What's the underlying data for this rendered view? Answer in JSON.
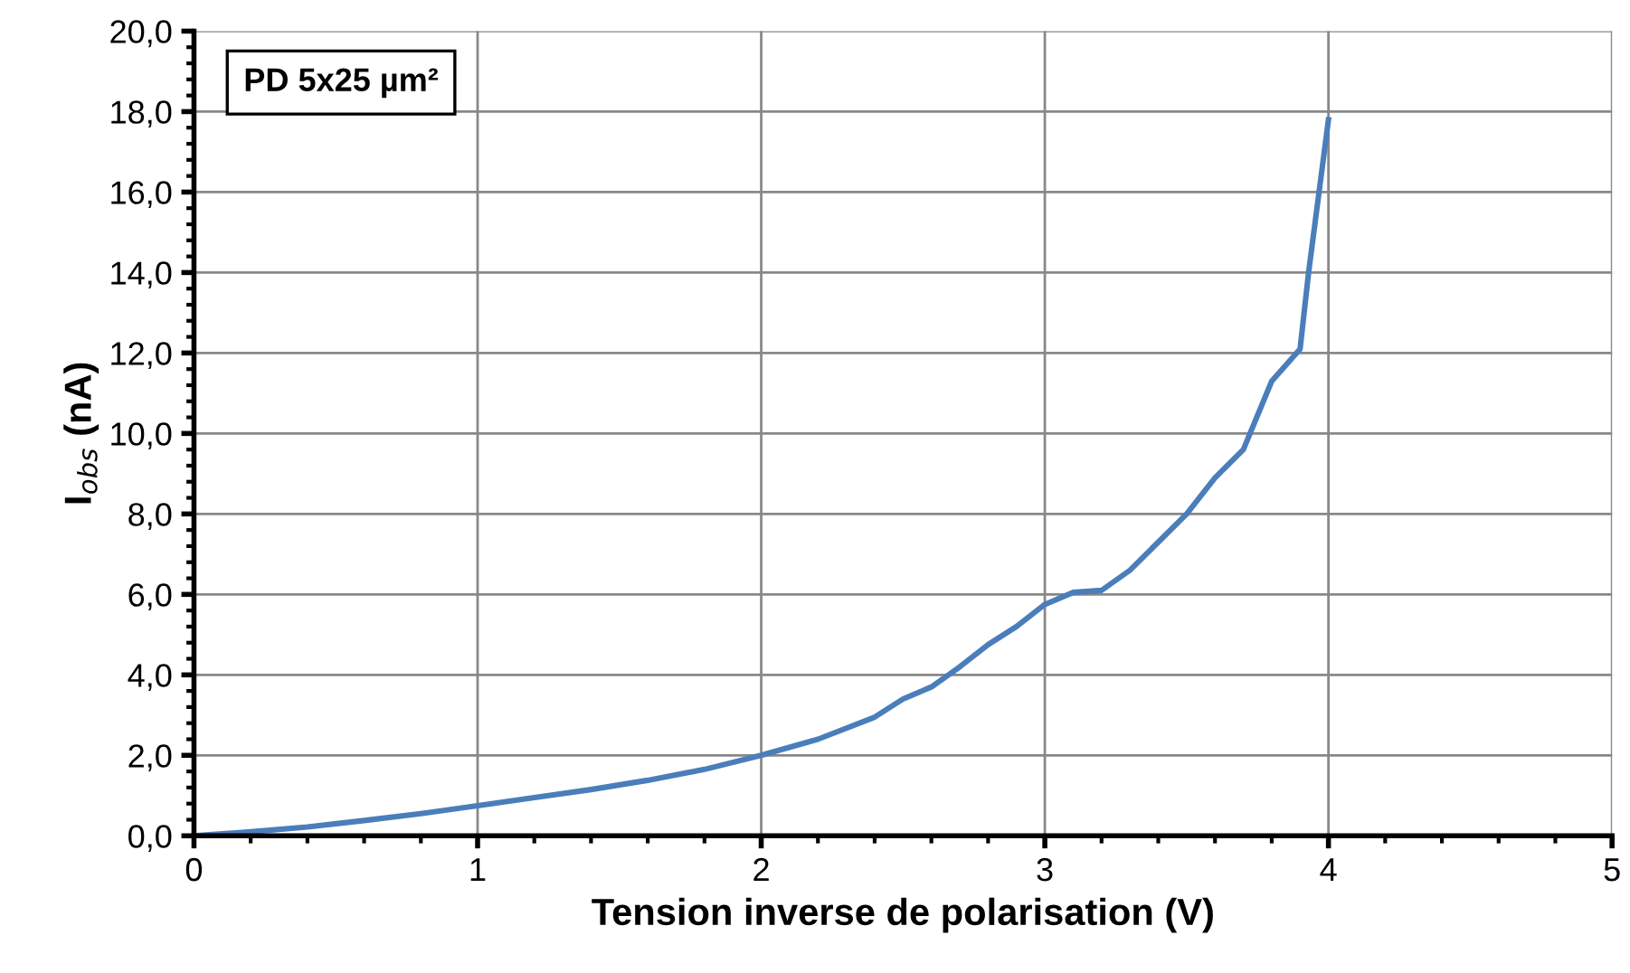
{
  "chart_data": {
    "type": "line",
    "xlabel": "Tension inverse de polarisation (V)",
    "ylabel": "I$_{obs}$ (nA)",
    "annotations": [
      "PD 5x25 µm²"
    ],
    "x": [
      0,
      0.2,
      0.4,
      0.6,
      0.8,
      1.0,
      1.2,
      1.4,
      1.6,
      1.8,
      2.0,
      2.2,
      2.4,
      2.5,
      2.6,
      2.7,
      2.8,
      2.9,
      3.0,
      3.1,
      3.2,
      3.3,
      3.4,
      3.5,
      3.6,
      3.7,
      3.8,
      3.9,
      3.93,
      4.0
    ],
    "series": [
      {
        "color": "#4a7ebb",
        "values": [
          0,
          0.1,
          0.22,
          0.38,
          0.55,
          0.75,
          0.95,
          1.15,
          1.38,
          1.65,
          2.0,
          2.4,
          2.95,
          3.4,
          3.7,
          4.2,
          4.75,
          5.2,
          5.75,
          6.05,
          6.1,
          6.6,
          7.3,
          8.0,
          8.9,
          9.6,
          11.3,
          12.1,
          14.0,
          17.8
        ]
      }
    ],
    "xlim": [
      0,
      5
    ],
    "xticks": [
      0,
      1,
      2,
      3,
      4,
      5
    ],
    "ylim": [
      0,
      20
    ],
    "yticks": [
      {
        "value": 0,
        "label": "0,0"
      },
      {
        "value": 2,
        "label": "2,0"
      },
      {
        "value": 4,
        "label": "4,0"
      },
      {
        "value": 6,
        "label": "6,0"
      },
      {
        "value": 8,
        "label": "8,0"
      },
      {
        "value": 10,
        "label": "10,0"
      },
      {
        "value": 12,
        "label": "12,0"
      },
      {
        "value": 14,
        "label": "14,0"
      },
      {
        "value": 16,
        "label": "16,0"
      },
      {
        "value": 18,
        "label": "18,0"
      },
      {
        "value": 20,
        "label": "20,0"
      }
    ],
    "grid": true,
    "legend": false,
    "marker": "none",
    "line_style": "solid"
  }
}
